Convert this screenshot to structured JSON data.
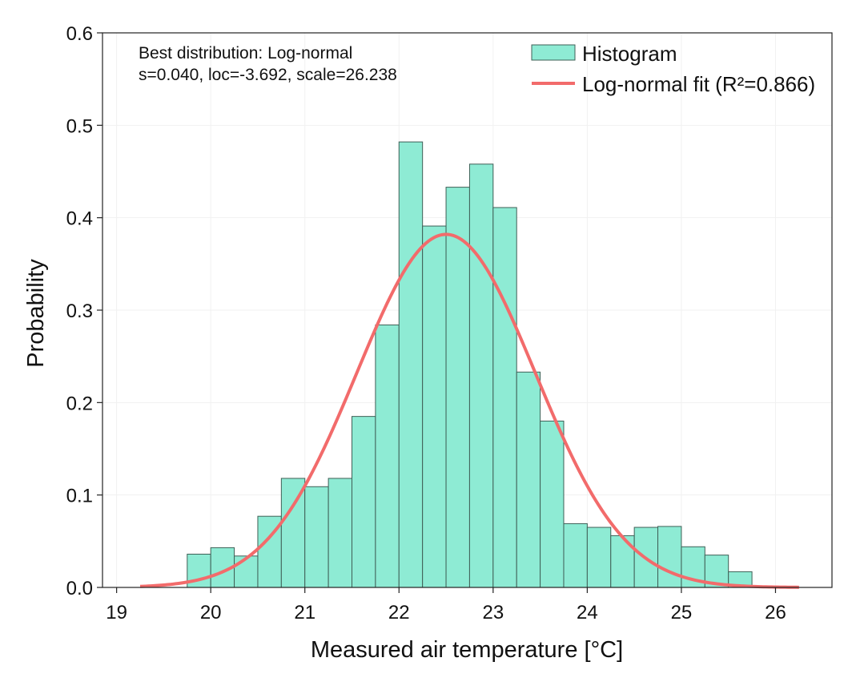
{
  "chart_data": {
    "type": "bar",
    "xlabel": "Measured air temperature [°C]",
    "ylabel": "Probability",
    "xlim": [
      18.85,
      26.6
    ],
    "ylim": [
      0.0,
      0.6
    ],
    "x_ticks": [
      19,
      20,
      21,
      22,
      23,
      24,
      25,
      26
    ],
    "y_ticks": [
      0.0,
      0.1,
      0.2,
      0.3,
      0.4,
      0.5,
      0.6
    ],
    "y_tick_labels": [
      "0.0",
      "0.1",
      "0.2",
      "0.3",
      "0.4",
      "0.5",
      "0.6"
    ],
    "grid": true,
    "legend_position": "top-right",
    "annotation_lines": [
      "Best distribution: Log-normal",
      "s=0.040, loc=-3.692, scale=26.238"
    ],
    "histogram": {
      "name": "Histogram",
      "color": "#8eebd4",
      "edge_color": "#3f5f56",
      "bins": [
        {
          "start": 19.75,
          "end": 20.0,
          "value": 0.036
        },
        {
          "start": 20.0,
          "end": 20.25,
          "value": 0.043
        },
        {
          "start": 20.25,
          "end": 20.5,
          "value": 0.034
        },
        {
          "start": 20.5,
          "end": 20.75,
          "value": 0.077
        },
        {
          "start": 20.75,
          "end": 21.0,
          "value": 0.118
        },
        {
          "start": 21.0,
          "end": 21.25,
          "value": 0.109
        },
        {
          "start": 21.25,
          "end": 21.5,
          "value": 0.118
        },
        {
          "start": 21.5,
          "end": 21.75,
          "value": 0.185
        },
        {
          "start": 21.75,
          "end": 22.0,
          "value": 0.284
        },
        {
          "start": 22.0,
          "end": 22.25,
          "value": 0.482
        },
        {
          "start": 22.25,
          "end": 22.5,
          "value": 0.391
        },
        {
          "start": 22.5,
          "end": 22.75,
          "value": 0.433
        },
        {
          "start": 22.75,
          "end": 23.0,
          "value": 0.458
        },
        {
          "start": 23.0,
          "end": 23.25,
          "value": 0.411
        },
        {
          "start": 23.25,
          "end": 23.5,
          "value": 0.233
        },
        {
          "start": 23.5,
          "end": 23.75,
          "value": 0.18
        },
        {
          "start": 23.75,
          "end": 24.0,
          "value": 0.069
        },
        {
          "start": 24.0,
          "end": 24.25,
          "value": 0.065
        },
        {
          "start": 24.25,
          "end": 24.5,
          "value": 0.056
        },
        {
          "start": 24.5,
          "end": 24.75,
          "value": 0.065
        },
        {
          "start": 24.75,
          "end": 25.0,
          "value": 0.066
        },
        {
          "start": 25.0,
          "end": 25.25,
          "value": 0.044
        },
        {
          "start": 25.25,
          "end": 25.5,
          "value": 0.035
        },
        {
          "start": 25.5,
          "end": 25.75,
          "value": 0.017
        }
      ]
    },
    "fit": {
      "name": "Log-normal fit (R²=0.866)",
      "color": "#f26b6b",
      "x_range": [
        19.25,
        26.25
      ],
      "peak_x": 22.5,
      "peak_y": 0.382,
      "sd": 0.95
    }
  }
}
